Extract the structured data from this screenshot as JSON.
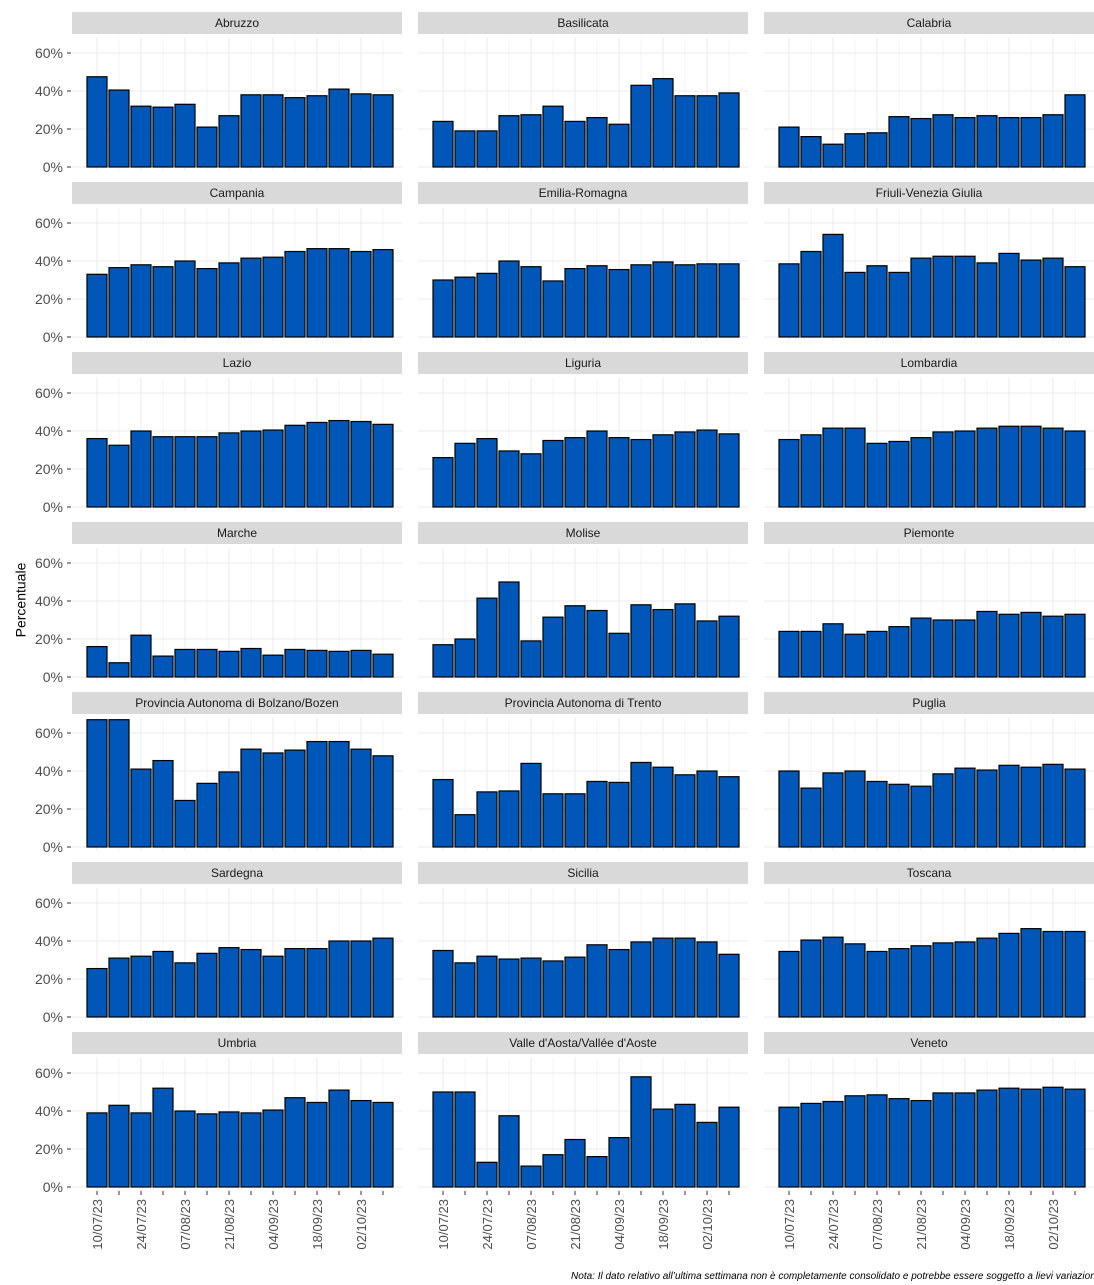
{
  "chart_data": {
    "type": "bar",
    "color": "#0057b7",
    "y_label": "Percentuale",
    "note": "Nota: Il dato relativo all’ultima settimana non è completamente consolidato e potrebbe essere soggetto a lievi variazioni",
    "categories": [
      "10/07/23",
      null,
      "24/07/23",
      null,
      "07/08/23",
      null,
      "21/08/23",
      null,
      "04/09/23",
      null,
      "18/09/23",
      null,
      "02/10/23",
      null
    ],
    "ylim": [
      0,
      68
    ],
    "yticks": [
      {
        "value": 0,
        "label": "0%"
      },
      {
        "value": 20,
        "label": "20%"
      },
      {
        "value": 40,
        "label": "40%"
      },
      {
        "value": 60,
        "label": "60%"
      }
    ],
    "grid": true,
    "panels": [
      {
        "title": "Abruzzo",
        "values": [
          47.5,
          40.5,
          32,
          31.5,
          33,
          21,
          27,
          38,
          38,
          36.5,
          37.5,
          41,
          38.5,
          38
        ]
      },
      {
        "title": "Basilicata",
        "values": [
          24,
          19,
          19,
          27,
          27.5,
          32,
          24,
          26,
          22.5,
          43,
          46.5,
          37.5,
          37.5,
          39
        ]
      },
      {
        "title": "Calabria",
        "values": [
          21,
          16,
          12,
          17.5,
          18,
          26.5,
          25.5,
          27.5,
          26,
          27,
          26,
          26,
          27.5,
          38
        ]
      },
      {
        "title": "Campania",
        "values": [
          33,
          36.5,
          38,
          37,
          40,
          36,
          39,
          41.5,
          42,
          45,
          46.5,
          46.5,
          45,
          46
        ]
      },
      {
        "title": "Emilia-Romagna",
        "values": [
          30,
          31.5,
          33.5,
          40,
          37,
          29.5,
          36,
          37.5,
          35.5,
          38,
          39.5,
          38,
          38.5,
          38.5
        ]
      },
      {
        "title": "Friuli-Venezia Giulia",
        "values": [
          38.5,
          45,
          54,
          34,
          37.5,
          34,
          41.5,
          42.5,
          42.5,
          39,
          44,
          40.5,
          41.5,
          37
        ]
      },
      {
        "title": "Lazio",
        "values": [
          36,
          32.5,
          40,
          37,
          37,
          37,
          39,
          40,
          40.5,
          43,
          44.5,
          45.5,
          45,
          43.5
        ]
      },
      {
        "title": "Liguria",
        "values": [
          26,
          33.5,
          36,
          29.5,
          28,
          35,
          36.5,
          40,
          36.5,
          35.5,
          38,
          39.5,
          40.5,
          38.5
        ]
      },
      {
        "title": "Lombardia",
        "values": [
          35.5,
          38,
          41.5,
          41.5,
          33.5,
          34.5,
          36.5,
          39.5,
          40,
          41.5,
          42.5,
          42.5,
          41.5,
          40
        ]
      },
      {
        "title": "Marche",
        "values": [
          16,
          7.5,
          22,
          11,
          14.5,
          14.5,
          13.5,
          15,
          11.5,
          14.5,
          14,
          13.5,
          14,
          12
        ]
      },
      {
        "title": "Molise",
        "values": [
          17,
          20,
          41.5,
          50,
          19,
          31.5,
          37.5,
          35,
          23,
          38,
          35.5,
          38.5,
          29.5,
          32
        ]
      },
      {
        "title": "Piemonte",
        "values": [
          24,
          24,
          28,
          22.5,
          24,
          26.5,
          31,
          30,
          30,
          34.5,
          33,
          34,
          32,
          33
        ]
      },
      {
        "title": "Provincia Autonoma di Bolzano/Bozen",
        "values": [
          67,
          67,
          41,
          45.5,
          24.5,
          33.5,
          39.5,
          51.5,
          49.5,
          51,
          55.5,
          55.5,
          51.5,
          48
        ]
      },
      {
        "title": "Provincia Autonoma di Trento",
        "values": [
          35.5,
          17,
          29,
          29.5,
          44,
          28,
          28,
          34.5,
          34,
          44.5,
          42,
          38,
          40,
          37
        ]
      },
      {
        "title": "Puglia",
        "values": [
          40,
          31,
          39,
          40,
          34.5,
          33,
          32,
          38.5,
          41.5,
          40.5,
          43,
          42,
          43.5,
          41
        ]
      },
      {
        "title": "Sardegna",
        "values": [
          25.5,
          31,
          32,
          34.5,
          28.5,
          33.5,
          36.5,
          35.5,
          32,
          36,
          36,
          40,
          40,
          41.5
        ]
      },
      {
        "title": "Sicilia",
        "values": [
          35,
          28.5,
          32,
          30.5,
          31,
          29.5,
          31.5,
          38,
          35.5,
          39.5,
          41.5,
          41.5,
          39.5,
          33
        ]
      },
      {
        "title": "Toscana",
        "values": [
          34.5,
          40.5,
          42,
          38.5,
          34.5,
          36,
          37.5,
          39,
          39.5,
          41.5,
          44,
          46.5,
          45,
          45
        ]
      },
      {
        "title": "Umbria",
        "values": [
          39,
          43,
          39,
          52,
          40,
          38.5,
          39.5,
          39,
          40.5,
          47,
          44.5,
          51,
          45.5,
          44.5
        ]
      },
      {
        "title": "Valle d'Aosta/Vallée d'Aoste",
        "values": [
          50,
          50,
          13,
          37.5,
          11,
          17,
          25,
          16,
          26,
          58,
          41,
          43.5,
          34,
          42
        ]
      },
      {
        "title": "Veneto",
        "values": [
          42,
          44,
          45,
          48,
          48.5,
          46.5,
          45.5,
          49.5,
          49.5,
          51,
          52,
          51.5,
          52.5,
          51.5
        ]
      }
    ]
  }
}
